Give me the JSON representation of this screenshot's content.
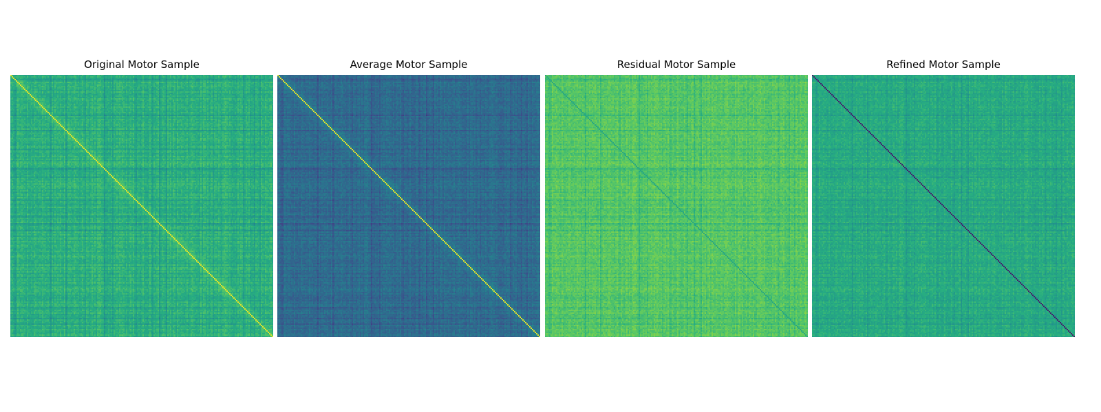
{
  "chart_data": [
    {
      "type": "heatmap",
      "title": "Original Motor Sample",
      "colormap": "viridis",
      "axes_visible": false,
      "diagonal": "bright",
      "base_level": 0.64,
      "contrast": 0.14
    },
    {
      "type": "heatmap",
      "title": "Average Motor Sample",
      "colormap": "viridis",
      "axes_visible": false,
      "diagonal": "bright",
      "base_level": 0.36,
      "contrast": 0.12
    },
    {
      "type": "heatmap",
      "title": "Residual Motor Sample",
      "colormap": "viridis",
      "axes_visible": false,
      "diagonal": "mid",
      "base_level": 0.74,
      "contrast": 0.1
    },
    {
      "type": "heatmap",
      "title": "Refined Motor Sample",
      "colormap": "viridis",
      "axes_visible": false,
      "diagonal": "dark",
      "base_level": 0.62,
      "contrast": 0.1
    }
  ]
}
